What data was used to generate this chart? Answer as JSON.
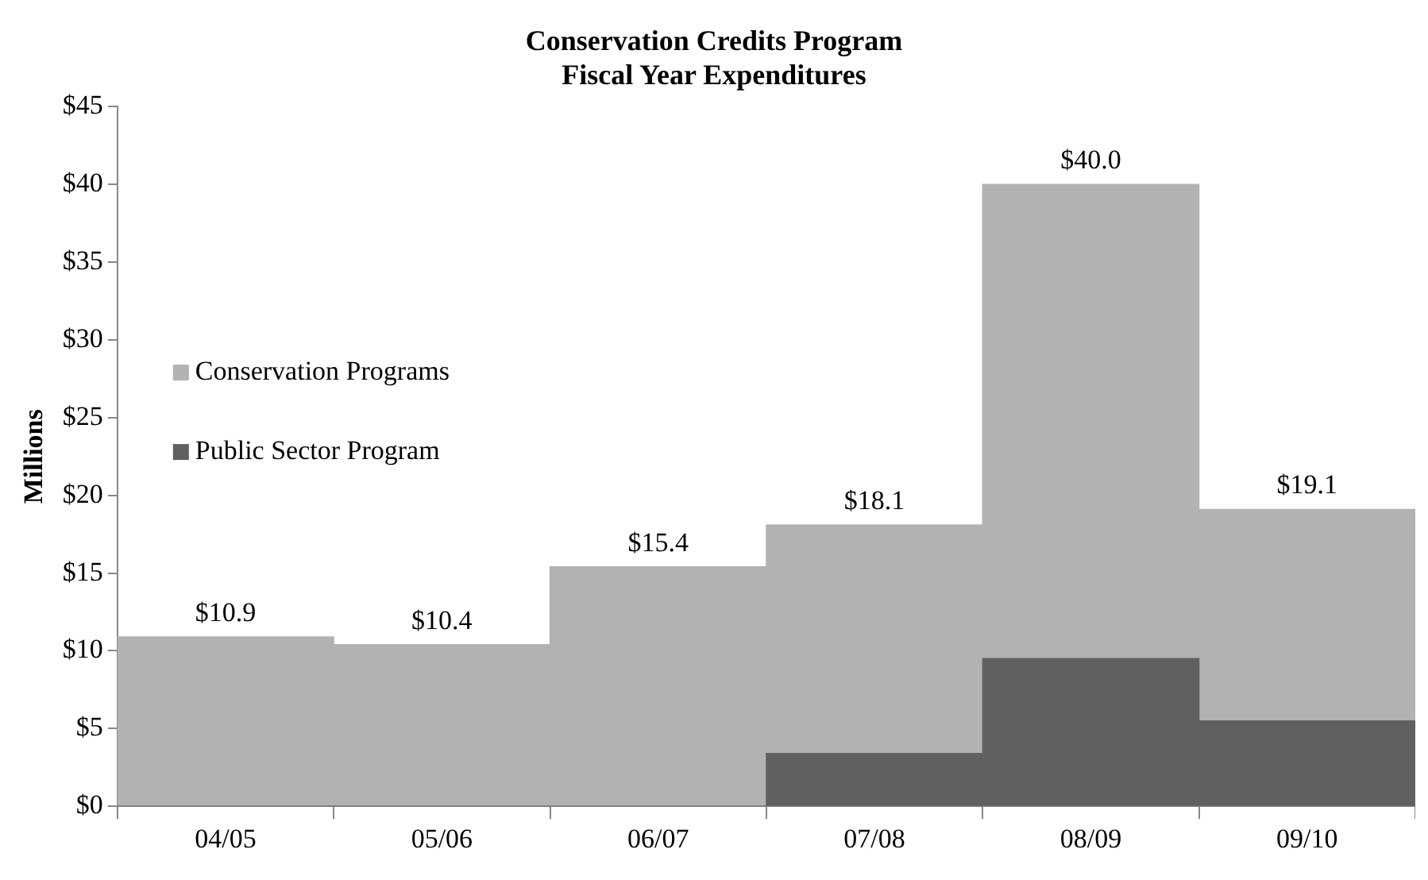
{
  "chart_data": {
    "type": "bar",
    "title": "Conservation Credits Program",
    "subtitle": "Fiscal Year Expenditures",
    "ylabel": "Millions",
    "categories": [
      "04/05",
      "05/06",
      "06/07",
      "07/08",
      "08/09",
      "09/10"
    ],
    "stacked": true,
    "series": [
      {
        "name": "Public Sector Program",
        "color": "#606060",
        "values": [
          0,
          0,
          0,
          3.4,
          9.5,
          5.5
        ]
      },
      {
        "name": "Conservation Programs",
        "color": "#b2b2b2",
        "values": [
          10.9,
          10.4,
          15.4,
          14.7,
          30.5,
          13.6
        ]
      }
    ],
    "totals": [
      "$10.9",
      "$10.4",
      "$15.4",
      "$18.1",
      "$40.0",
      "$19.1"
    ],
    "ylim": [
      0,
      45
    ],
    "yticks": [
      {
        "value": 0,
        "label": "$0"
      },
      {
        "value": 5,
        "label": "$5"
      },
      {
        "value": 10,
        "label": "$10"
      },
      {
        "value": 15,
        "label": "$15"
      },
      {
        "value": 20,
        "label": "$20"
      },
      {
        "value": 25,
        "label": "$25"
      },
      {
        "value": 30,
        "label": "$30"
      },
      {
        "value": 35,
        "label": "$35"
      },
      {
        "value": 40,
        "label": "$40"
      },
      {
        "value": 45,
        "label": "$45"
      }
    ],
    "grid": false,
    "legend": "left"
  }
}
